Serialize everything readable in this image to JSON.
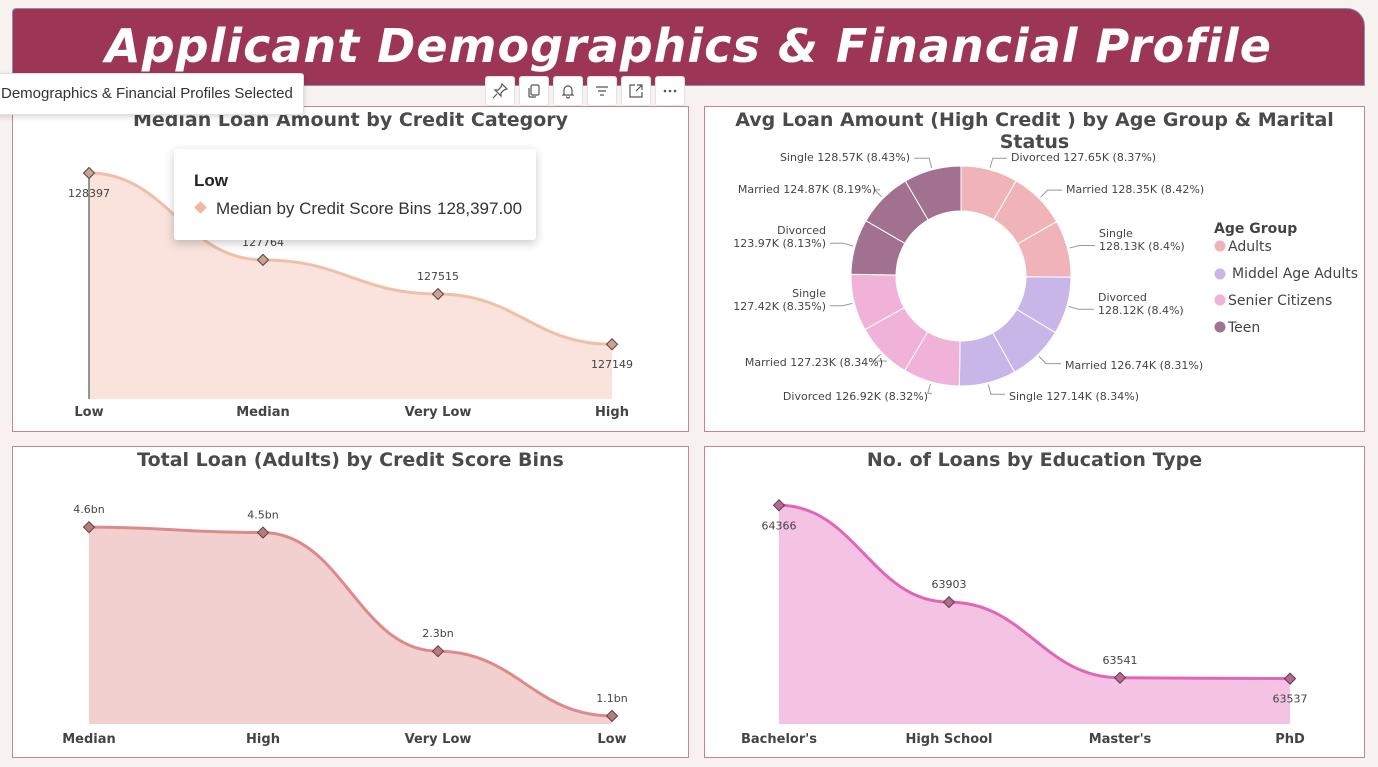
{
  "header": {
    "title": "Applicant Demographics & Financial Profile"
  },
  "selection_chip": {
    "label": "Demographics & Financial Profiles Selected"
  },
  "toolbar": {
    "icons": [
      "pin-icon",
      "copy-icon",
      "bell-icon",
      "filter-icon",
      "focus-mode-icon",
      "more-options-icon"
    ]
  },
  "tooltip": {
    "header": "Low",
    "label": "Median by Credit Score Bins",
    "value": "128,397.00",
    "swatch_color": "#f4b8a0"
  },
  "chart_data": [
    {
      "id": "median-loan",
      "type": "area",
      "title": "Median Loan Amount by Credit Category",
      "categories": [
        "Low",
        "Median",
        "Very Low",
        "High"
      ],
      "values": [
        128397,
        127764,
        127515,
        127149
      ],
      "value_labels": [
        "128397",
        "127764",
        "127515",
        "127149"
      ],
      "colors": {
        "fill": "#f9e3dc",
        "line": "#f0bfa8",
        "marker": "#c9a394"
      },
      "ylim": [
        126750,
        128550
      ]
    },
    {
      "id": "donut",
      "type": "pie",
      "title": "Avg Loan Amount (High Credit ) by Age Group & Marital Status",
      "legend_title": "Age Group",
      "legend": [
        {
          "name": "Adults",
          "color": "#f0b3b8"
        },
        {
          "name": "Middel Age Adults",
          "color": "#c9b6e8"
        },
        {
          "name": "Senier Citizens",
          "color": "#f1b2da"
        },
        {
          "name": "Teen",
          "color": "#a1718f"
        }
      ],
      "slices": [
        {
          "label": "Divorced 127.65K (8.37%)",
          "value": 127.65,
          "group": "Adults"
        },
        {
          "label": "Married 128.35K (8.42%)",
          "value": 128.35,
          "group": "Adults"
        },
        {
          "label": "Single\n128.13K (8.4%)",
          "value": 128.13,
          "group": "Adults"
        },
        {
          "label": "Divorced\n128.12K (8.4%)",
          "value": 128.12,
          "group": "Middel Age Adults"
        },
        {
          "label": "Married 126.74K (8.31%)",
          "value": 126.74,
          "group": "Middel Age Adults"
        },
        {
          "label": "Single 127.14K (8.34%)",
          "value": 127.14,
          "group": "Middel Age Adults"
        },
        {
          "label": "Divorced 126.92K (8.32%)",
          "value": 126.92,
          "group": "Senier Citizens"
        },
        {
          "label": "Married 127.23K (8.34%)",
          "value": 127.23,
          "group": "Senier Citizens"
        },
        {
          "label": "Single\n127.42K (8.35%)",
          "value": 127.42,
          "group": "Senier Citizens"
        },
        {
          "label": "Divorced\n123.97K (8.13%)",
          "value": 123.97,
          "group": "Teen"
        },
        {
          "label": "Married 124.87K (8.19%)",
          "value": 124.87,
          "group": "Teen"
        },
        {
          "label": "Single 128.57K (8.43%)",
          "value": 128.57,
          "group": "Teen"
        }
      ]
    },
    {
      "id": "total-loan",
      "type": "area",
      "title": "Total Loan (Adults) by Credit Score Bins",
      "categories": [
        "Median",
        "High",
        "Very Low",
        "Low"
      ],
      "values": [
        4.6,
        4.5,
        2.3,
        1.1
      ],
      "value_labels": [
        "4.6bn",
        "4.5bn",
        "2.3bn",
        "1.1bn"
      ],
      "colors": {
        "fill": "#f1d0cf",
        "line": "#df8a8a",
        "marker": "#b87b7b"
      },
      "ylim": [
        0.95,
        4.9
      ]
    },
    {
      "id": "education",
      "type": "area",
      "title": "No. of Loans by Education Type",
      "categories": [
        "Bachelor's",
        "High School",
        "Master's",
        "PhD"
      ],
      "values": [
        64366,
        63903,
        63541,
        63537
      ],
      "value_labels": [
        "64366",
        "63903",
        "63541",
        "63537"
      ],
      "colors": {
        "fill": "#f4c3e3",
        "line": "#e066b8",
        "marker": "#b8679a"
      },
      "ylim": [
        63320,
        64420
      ]
    }
  ]
}
